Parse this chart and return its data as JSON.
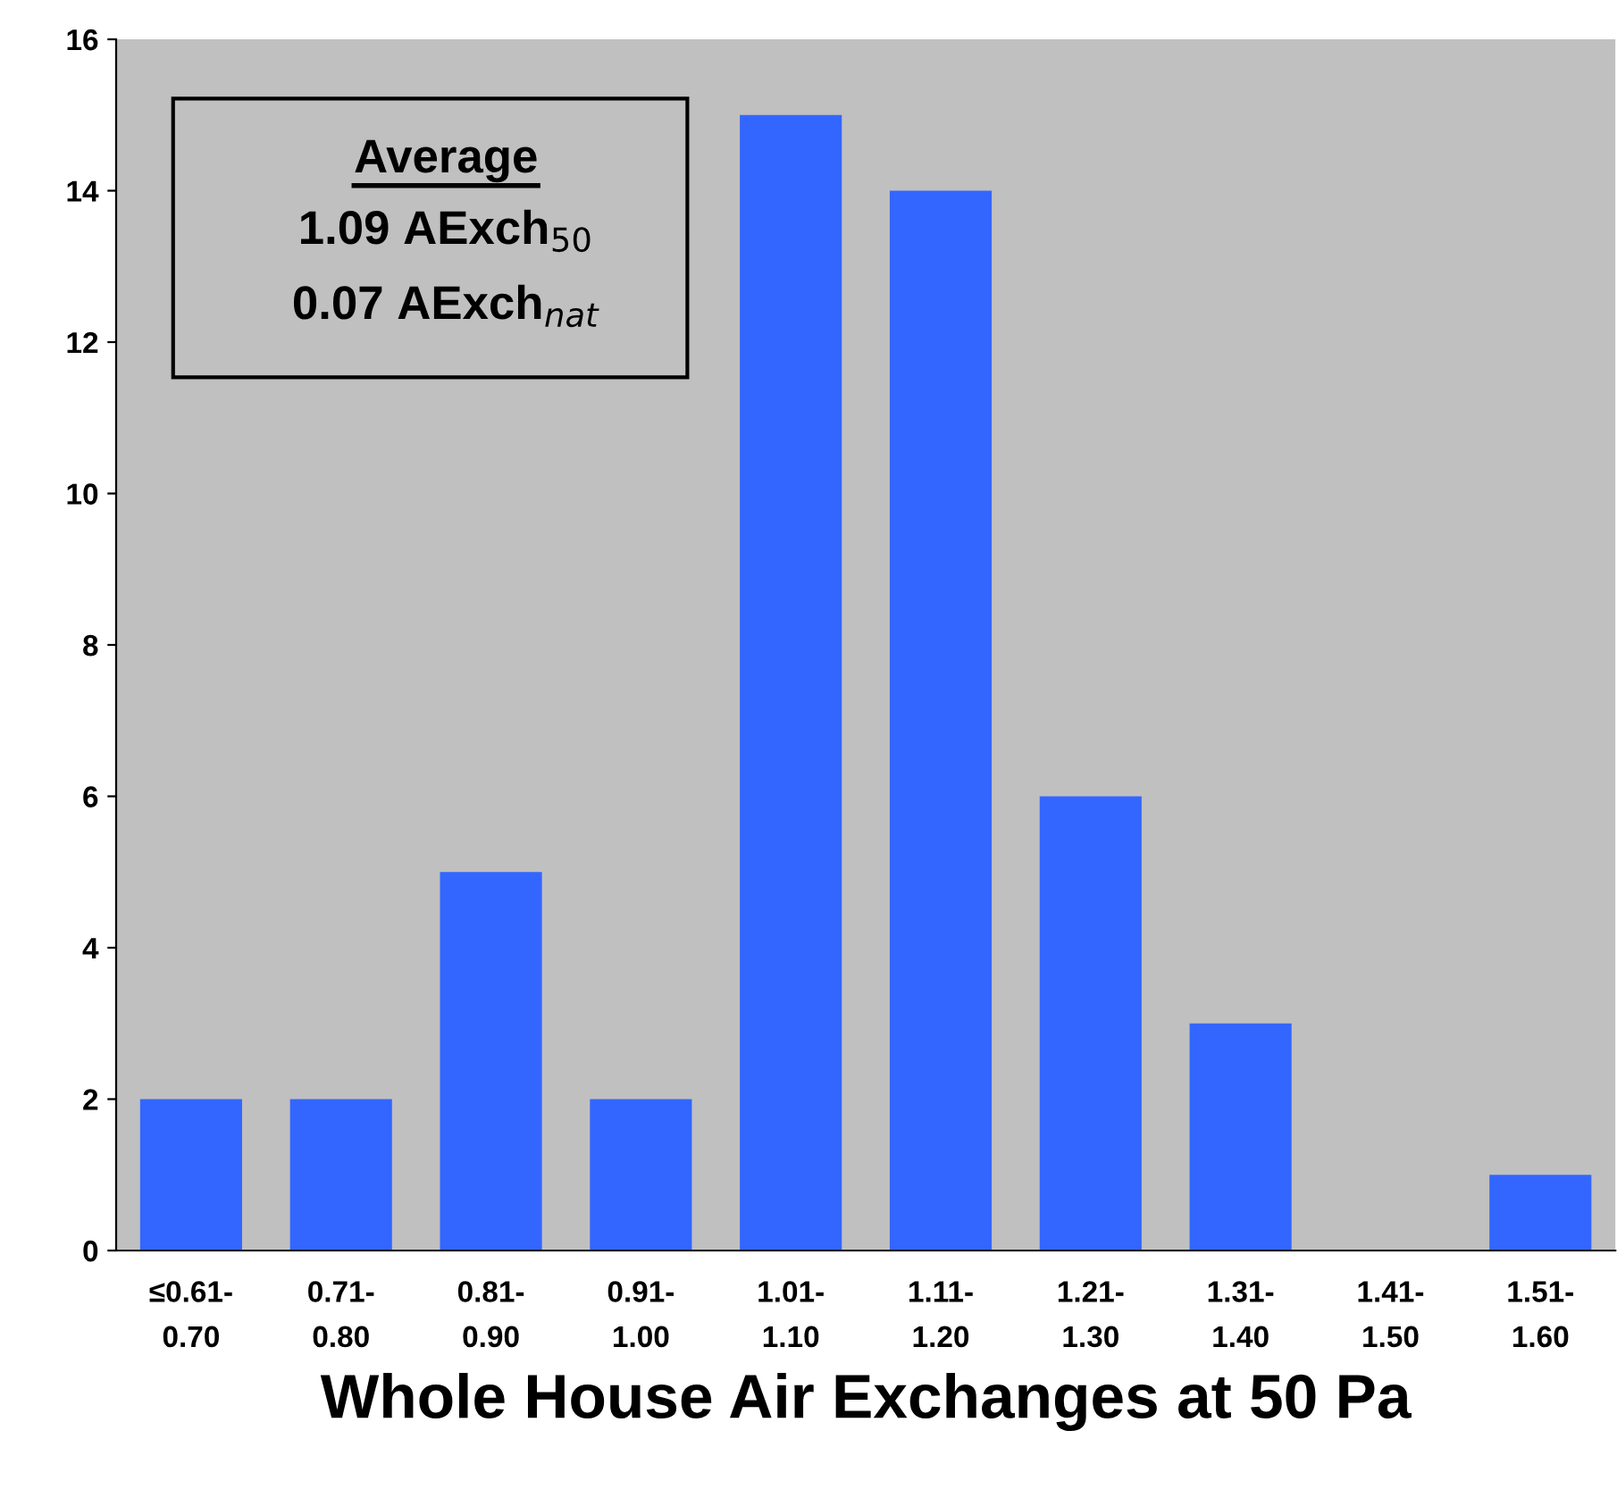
{
  "chart_data": {
    "type": "bar",
    "xlabel": "Whole House Air Exchanges at 50 Pa",
    "categories": [
      "≤0.61-\n0.70",
      "0.71-\n0.80",
      "0.81-\n0.90",
      "0.91-\n1.00",
      "1.01-\n1.10",
      "1.11-\n1.20",
      "1.21-\n1.30",
      "1.31-\n1.40",
      "1.41-\n1.50",
      "1.51-\n1.60"
    ],
    "values": [
      2,
      2,
      5,
      2,
      15,
      14,
      6,
      3,
      0,
      1
    ],
    "color": "#3366ff",
    "ylim": [
      0,
      16
    ],
    "yticks": [
      0,
      2,
      4,
      6,
      8,
      10,
      12,
      14,
      16
    ],
    "grid": false,
    "legend": false,
    "annotations": [
      "Average",
      "1.09 AExch$_{50}$",
      "0.07 AExch$_{nat}$"
    ]
  }
}
